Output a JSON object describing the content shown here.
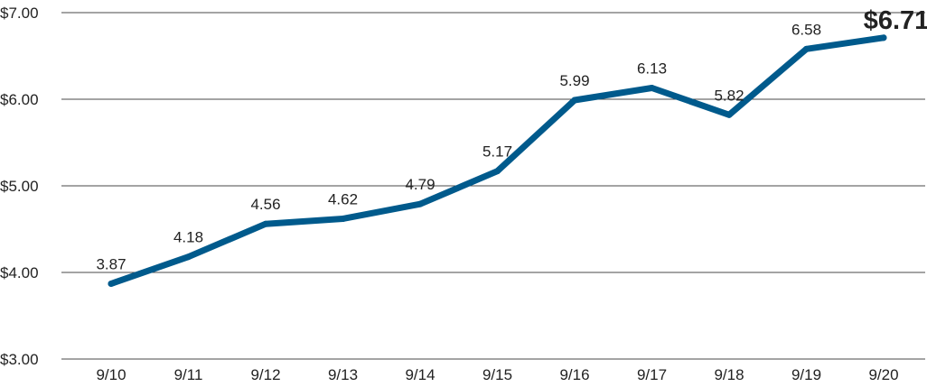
{
  "chart_data": {
    "type": "line",
    "title": "",
    "xlabel": "",
    "ylabel": "",
    "categories": [
      "9/10",
      "9/11",
      "9/12",
      "9/13",
      "9/14",
      "9/15",
      "9/16",
      "9/17",
      "9/18",
      "9/19",
      "9/20"
    ],
    "series": [
      {
        "values": [
          3.87,
          4.18,
          4.56,
          4.62,
          4.79,
          5.17,
          5.99,
          6.13,
          5.82,
          6.58,
          6.71
        ]
      }
    ],
    "data_labels": [
      "3.87",
      "4.18",
      "4.56",
      "4.62",
      "4.79",
      "5.17",
      "5.99",
      "6.13",
      "5.82",
      "6.58",
      "$6.71"
    ],
    "y_ticks": [
      3,
      4,
      5,
      6,
      7
    ],
    "y_tick_labels": [
      "$3.00",
      "$4.00",
      "$5.00",
      "$6.00",
      "$7.00"
    ],
    "ylim": [
      3,
      7
    ],
    "grid": true,
    "legend": "none",
    "colors": {
      "line": "#005a8c",
      "grid": "#4a4a4a",
      "text": "#222222"
    }
  }
}
